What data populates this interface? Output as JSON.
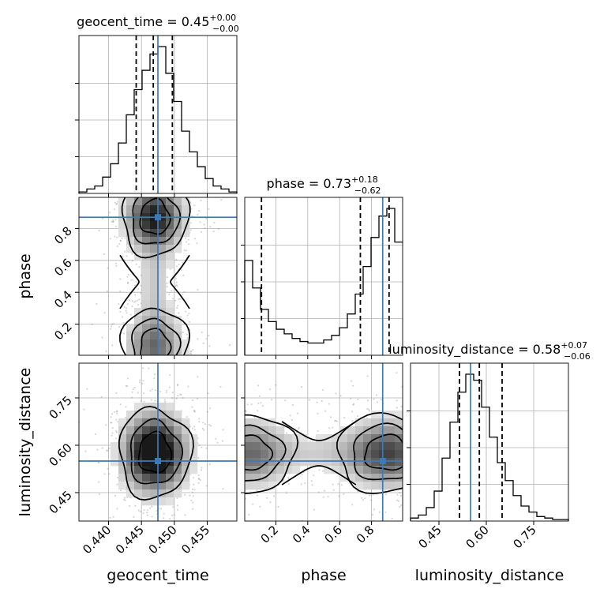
{
  "chart_data": {
    "type": "corner",
    "parameters": [
      "geocent_time",
      "phase",
      "luminosity_distance"
    ],
    "titles": [
      {
        "param": "geocent_time",
        "label": "geocent_time",
        "median": "0.45",
        "plus": "+0.00",
        "minus": "−0.00"
      },
      {
        "param": "phase",
        "label": "phase",
        "median": "0.73",
        "plus": "+0.18",
        "minus": "−0.62"
      },
      {
        "param": "luminosity_distance",
        "label": "luminosity_distance",
        "median": "0.58",
        "plus": "+0.07",
        "minus": "−0.06"
      }
    ],
    "axis_labels": {
      "x": [
        "geocent_time",
        "phase",
        "luminosity_distance"
      ],
      "y": [
        "phase",
        "luminosity_distance"
      ]
    },
    "ranges": {
      "geocent_time": [
        0.4355,
        0.4595
      ],
      "phase": [
        0.005,
        0.995
      ],
      "luminosity_distance": [
        0.36,
        0.86
      ]
    },
    "ticks": {
      "geocent_time": [
        "0.440",
        "0.445",
        "0.450",
        "0.455"
      ],
      "phase": [
        "0.2",
        "0.4",
        "0.6",
        "0.8"
      ],
      "luminosity_distance": [
        "0.45",
        "0.60",
        "0.75"
      ]
    },
    "truth": {
      "geocent_time": 0.4475,
      "phase": 0.87,
      "luminosity_distance": 0.55
    },
    "quantiles": {
      "geocent_time": [
        0.4442,
        0.4468,
        0.4497
      ],
      "phase": [
        0.11,
        0.73,
        0.91
      ],
      "luminosity_distance": [
        0.515,
        0.578,
        0.65
      ]
    },
    "histograms": {
      "geocent_time": {
        "range": [
          0.4355,
          0.4595
        ],
        "counts": [
          0.01,
          0.03,
          0.05,
          0.11,
          0.2,
          0.34,
          0.53,
          0.7,
          0.83,
          0.94,
          0.99,
          0.81,
          0.62,
          0.42,
          0.28,
          0.18,
          0.1,
          0.05,
          0.03,
          0.01
        ]
      },
      "phase": {
        "range": [
          0.005,
          0.995
        ],
        "counts": [
          0.62,
          0.44,
          0.3,
          0.22,
          0.17,
          0.14,
          0.11,
          0.09,
          0.08,
          0.08,
          0.1,
          0.13,
          0.18,
          0.27,
          0.4,
          0.58,
          0.77,
          0.91,
          0.96,
          0.74
        ]
      },
      "luminosity_distance": {
        "range": [
          0.36,
          0.86
        ],
        "counts": [
          0.02,
          0.04,
          0.09,
          0.2,
          0.42,
          0.66,
          0.86,
          0.98,
          0.94,
          0.76,
          0.56,
          0.39,
          0.27,
          0.17,
          0.1,
          0.06,
          0.03,
          0.02,
          0.01,
          0.01
        ]
      }
    },
    "grid": true
  }
}
